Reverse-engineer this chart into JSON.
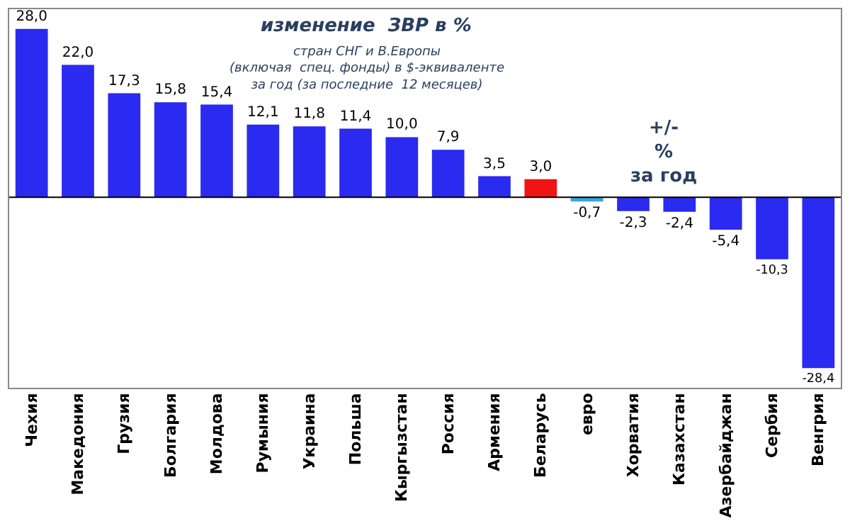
{
  "chart_data": {
    "type": "bar",
    "title": "изменение  ЗВР в %",
    "subtitle": "стран СНГ и В.Европы\n(включая  спец. фонды) в $-эквиваленте\nза год (за последние  12 месяцев)",
    "annotations": [
      "+/-\n%\nза год"
    ],
    "categories": [
      "Чехия",
      "Македония",
      "Грузия",
      "Болгария",
      "Молдова",
      "Румыния",
      "Украина",
      "Польша",
      "Кыргызстан",
      "Россия",
      "Армения",
      "Беларусь",
      "евро",
      "Хорватия",
      "Казахстан",
      "Азербайджан",
      "Сербия",
      "Венгрия"
    ],
    "values": [
      28.0,
      22.0,
      17.3,
      15.8,
      15.4,
      12.1,
      11.8,
      11.4,
      10.0,
      7.9,
      3.5,
      3.0,
      -0.7,
      -2.3,
      -2.4,
      -5.4,
      -10.3,
      -28.4
    ],
    "value_labels": [
      "28,0",
      "22,0",
      "17,3",
      "15,8",
      "15,4",
      "12,1",
      "11,8",
      "11,4",
      "10,0",
      "7,9",
      "3,5",
      "3,0",
      "-0,7",
      "-2,3",
      "-2,4",
      "-5,4",
      "-10,3",
      "-28,4"
    ],
    "colors": [
      "#2a2af0",
      "#2a2af0",
      "#2a2af0",
      "#2a2af0",
      "#2a2af0",
      "#2a2af0",
      "#2a2af0",
      "#2a2af0",
      "#2a2af0",
      "#2a2af0",
      "#2a2af0",
      "#f01414",
      "#33a8d8",
      "#2a2af0",
      "#2a2af0",
      "#2a2af0",
      "#2a2af0",
      "#2a2af0"
    ],
    "legend": false
  }
}
